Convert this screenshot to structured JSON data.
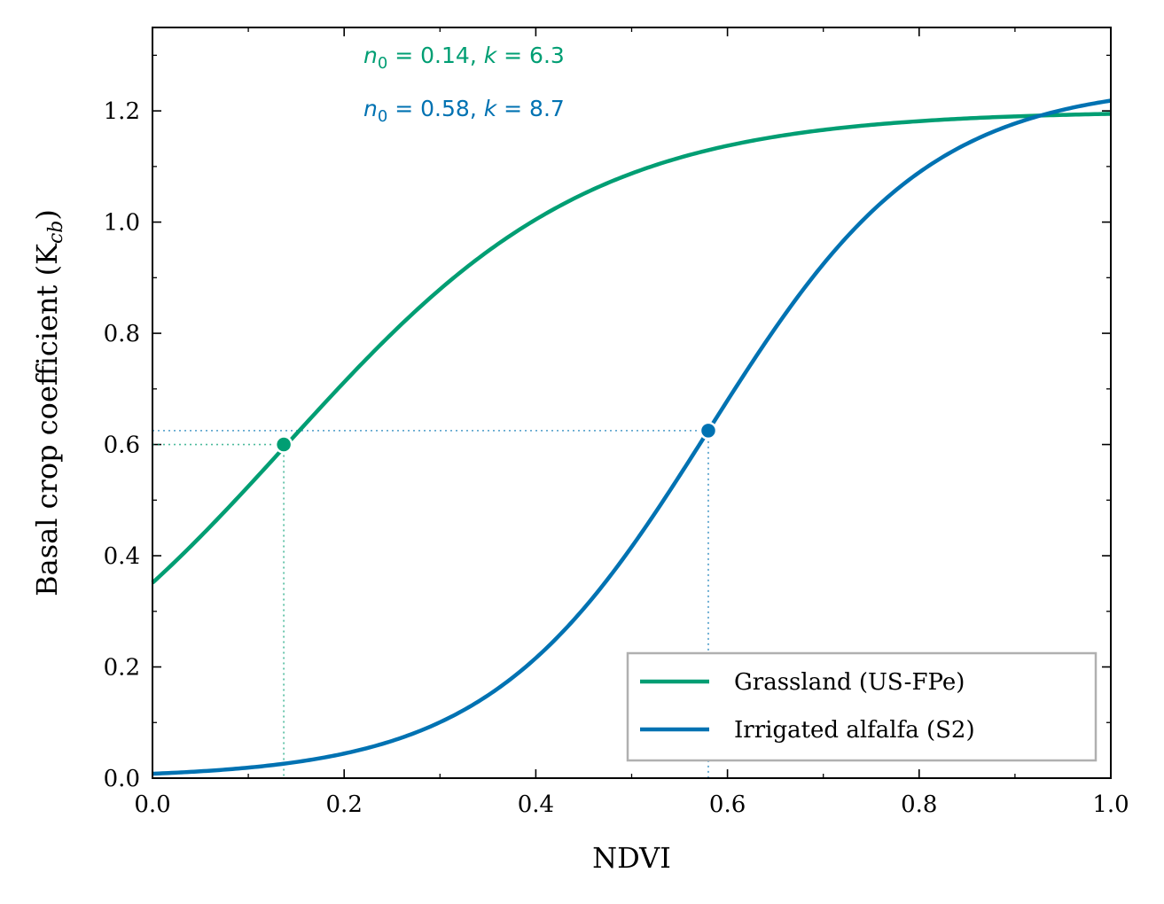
{
  "chart_data": {
    "type": "line",
    "xlabel": "NDVI",
    "ylabel": "Basal crop coefficient (K",
    "ylabel_sub": "cb",
    "ylabel_close": ")",
    "xlim": [
      0.0,
      1.0
    ],
    "ylim": [
      0.0,
      1.35
    ],
    "x_ticks": [
      "0.0",
      "0.2",
      "0.4",
      "0.6",
      "0.8",
      "1.0"
    ],
    "y_ticks": [
      "0.0",
      "0.2",
      "0.4",
      "0.6",
      "0.8",
      "1.0",
      "1.2"
    ],
    "legend_placement": "lower-right",
    "grid": false,
    "series": [
      {
        "name": "Grassland (US-FPe)",
        "color": "#009E73",
        "model": "logistic",
        "kcb_max": 1.2,
        "n0": 0.14,
        "k": 6.3,
        "highlight_point": {
          "x": 0.137,
          "y": 0.6
        },
        "annotation": {
          "n_sym": "n",
          "n_sub": "0",
          "n_val": " = 0.14,  ",
          "k_sym": "k",
          "k_val": " = 6.3"
        }
      },
      {
        "name": "Irrigated alfalfa (S2)",
        "color": "#0072B2",
        "model": "logistic",
        "kcb_max": 1.25,
        "n0": 0.58,
        "k": 8.7,
        "highlight_point": {
          "x": 0.58,
          "y": 0.625
        },
        "annotation": {
          "n_sym": "n",
          "n_sub": "0",
          "n_val": " = 0.58,  ",
          "k_sym": "k",
          "k_val": " = 8.7"
        }
      }
    ]
  }
}
